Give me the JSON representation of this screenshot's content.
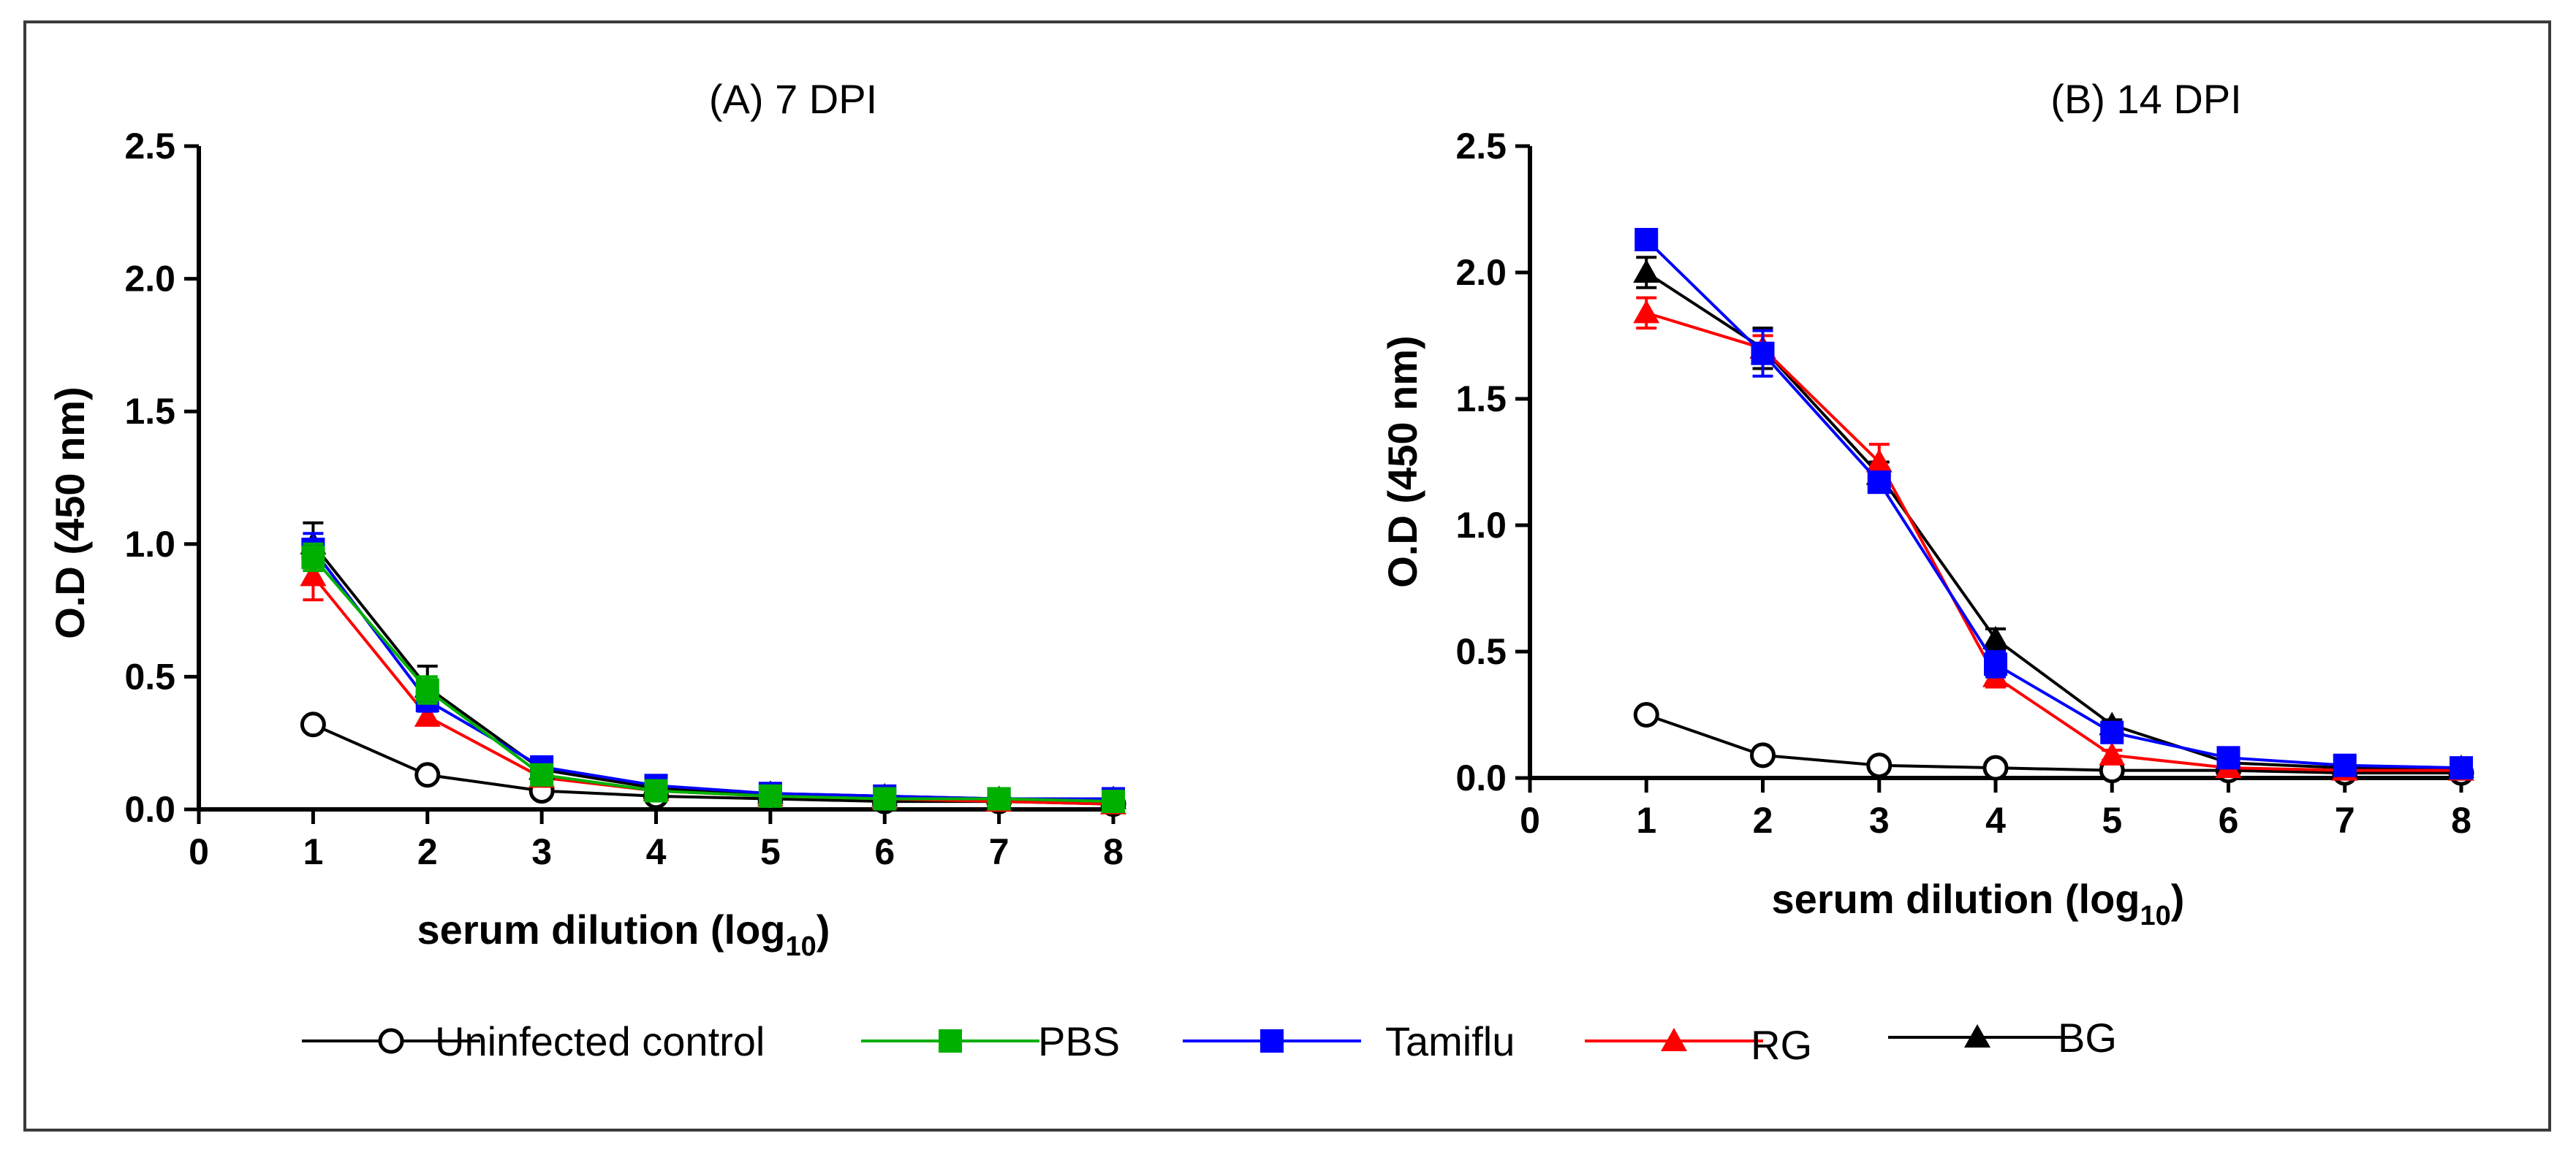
{
  "legend": [
    {
      "key": "uninfected",
      "label": "Uninfected control",
      "color": "#000000",
      "marker": "open-circle"
    },
    {
      "key": "pbs",
      "label": "PBS",
      "color": "#00b000",
      "marker": "square"
    },
    {
      "key": "tamiflu",
      "label": "Tamiflu",
      "color": "#0000ff",
      "marker": "square"
    },
    {
      "key": "rg",
      "label": "RG",
      "color": "#ff0000",
      "marker": "triangle"
    },
    {
      "key": "bg",
      "label": "BG",
      "color": "#000000",
      "marker": "triangle"
    }
  ],
  "chart_data": [
    {
      "type": "line",
      "title": "(A) 7 DPI",
      "xlabel": "serum dilution (log",
      "xlabel_sub": "10",
      "xlabel_end": ")",
      "ylabel": "O.D (450 nm)",
      "xlim": [
        0,
        8
      ],
      "ylim": [
        0,
        2.5
      ],
      "xticks": [
        "0",
        "1",
        "2",
        "3",
        "4",
        "5",
        "6",
        "7",
        "8"
      ],
      "yticks": [
        "0.0",
        "0.5",
        "1.0",
        "1.5",
        "2.0",
        "2.5"
      ],
      "x": [
        1,
        2,
        3,
        4,
        5,
        6,
        7,
        8
      ],
      "series": [
        {
          "key": "uninfected",
          "name": "Uninfected control",
          "values": [
            0.32,
            0.13,
            0.07,
            0.05,
            0.04,
            0.03,
            0.03,
            0.02
          ],
          "errors": [
            0.02,
            0.01,
            0.01,
            0.01,
            0.01,
            0.01,
            0.01,
            0.01
          ]
        },
        {
          "key": "rg",
          "name": "RG",
          "values": [
            0.88,
            0.35,
            0.12,
            0.07,
            0.05,
            0.04,
            0.03,
            0.02
          ],
          "errors": [
            0.09,
            0.03,
            0.02,
            0.01,
            0.01,
            0.01,
            0.01,
            0.01
          ]
        },
        {
          "key": "bg",
          "name": "BG",
          "values": [
            1.0,
            0.46,
            0.15,
            0.08,
            0.06,
            0.05,
            0.04,
            0.04
          ],
          "errors": [
            0.08,
            0.08,
            0.02,
            0.01,
            0.01,
            0.01,
            0.01,
            0.01
          ]
        },
        {
          "key": "tamiflu",
          "name": "Tamiflu",
          "values": [
            0.98,
            0.41,
            0.16,
            0.09,
            0.06,
            0.05,
            0.04,
            0.04
          ],
          "errors": [
            0.06,
            0.04,
            0.02,
            0.01,
            0.01,
            0.01,
            0.01,
            0.01
          ]
        },
        {
          "key": "pbs",
          "name": "PBS",
          "values": [
            0.95,
            0.45,
            0.13,
            0.07,
            0.05,
            0.04,
            0.04,
            0.03
          ],
          "errors": [
            0.05,
            0.05,
            0.02,
            0.01,
            0.01,
            0.01,
            0.01,
            0.01
          ]
        }
      ]
    },
    {
      "type": "line",
      "title": "(B) 14 DPI",
      "xlabel": "serum dilution (log",
      "xlabel_sub": "10",
      "xlabel_end": ")",
      "ylabel": "O.D (450 nm)",
      "xlim": [
        0,
        8
      ],
      "ylim": [
        0,
        2.5
      ],
      "xticks": [
        "0",
        "1",
        "2",
        "3",
        "4",
        "5",
        "6",
        "7",
        "8"
      ],
      "yticks": [
        "0.0",
        "0.5",
        "1.0",
        "1.5",
        "2.0",
        "2.5"
      ],
      "x": [
        1,
        2,
        3,
        4,
        5,
        6,
        7,
        8
      ],
      "series": [
        {
          "key": "uninfected",
          "name": "Uninfected control",
          "values": [
            0.25,
            0.09,
            0.05,
            0.04,
            0.03,
            0.03,
            0.02,
            0.02
          ],
          "errors": [
            0.01,
            0.01,
            0.01,
            0.01,
            0.01,
            0.01,
            0.01,
            0.01
          ]
        },
        {
          "key": "bg",
          "name": "BG",
          "values": [
            2.0,
            1.7,
            1.2,
            0.55,
            0.21,
            0.06,
            0.04,
            0.04
          ],
          "errors": [
            0.06,
            0.08,
            0.05,
            0.04,
            0.02,
            0.01,
            0.01,
            0.01
          ]
        },
        {
          "key": "rg",
          "name": "RG",
          "values": [
            1.84,
            1.7,
            1.25,
            0.4,
            0.09,
            0.04,
            0.03,
            0.03
          ],
          "errors": [
            0.06,
            0.05,
            0.07,
            0.04,
            0.02,
            0.01,
            0.01,
            0.01
          ]
        },
        {
          "key": "tamiflu",
          "name": "Tamiflu",
          "values": [
            2.13,
            1.68,
            1.17,
            0.45,
            0.18,
            0.08,
            0.05,
            0.04
          ],
          "errors": [
            0.03,
            0.09,
            0.04,
            0.05,
            0.03,
            0.01,
            0.01,
            0.01
          ]
        }
      ]
    }
  ]
}
